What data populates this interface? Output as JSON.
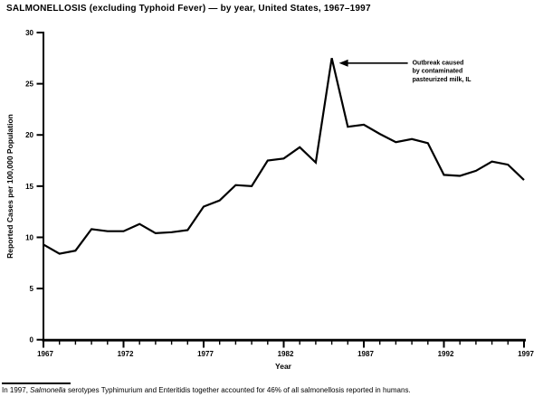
{
  "page": {
    "title": "SALMONELLOSIS (excluding Typhoid Fever) — by year, United States, 1967–1997",
    "footnote": {
      "prefix": "In 1997, ",
      "italic_term": "Salmonella",
      "rest": " serotypes Typhimurium and Enteritidis together accounted for 46% of all salmonellosis reported in humans."
    }
  },
  "chart_data": {
    "type": "line",
    "title": "SALMONELLOSIS (excluding Typhoid Fever) — by year, United States, 1967–1997",
    "xlabel": "Year",
    "ylabel": "Reported Cases per 100,000 Population",
    "x": [
      1967,
      1968,
      1969,
      1970,
      1971,
      1972,
      1973,
      1974,
      1975,
      1976,
      1977,
      1978,
      1979,
      1980,
      1981,
      1982,
      1983,
      1984,
      1985,
      1986,
      1987,
      1988,
      1989,
      1990,
      1991,
      1992,
      1993,
      1994,
      1995,
      1996,
      1997
    ],
    "values": [
      9.3,
      8.4,
      8.7,
      10.8,
      10.6,
      10.6,
      11.3,
      10.4,
      10.5,
      10.7,
      13.0,
      13.6,
      15.1,
      15.0,
      17.5,
      17.7,
      18.8,
      17.3,
      27.5,
      20.8,
      21.0,
      20.1,
      19.3,
      19.6,
      19.2,
      16.1,
      16.0,
      16.5,
      17.4,
      17.1,
      15.6
    ],
    "xlim": [
      1967,
      1997
    ],
    "ylim": [
      0,
      30
    ],
    "y_ticks": [
      0,
      5,
      10,
      15,
      20,
      25,
      30
    ],
    "x_tick_labels": [
      1967,
      1972,
      1977,
      1982,
      1987,
      1992,
      1997
    ],
    "grid": false,
    "legend": "none",
    "line_color": "#000000",
    "annotation": {
      "lines": [
        "Outbreak caused",
        "by contaminated",
        "pasteurized milk, IL"
      ],
      "points_to": {
        "year": 1985,
        "value": 27.5
      }
    }
  }
}
